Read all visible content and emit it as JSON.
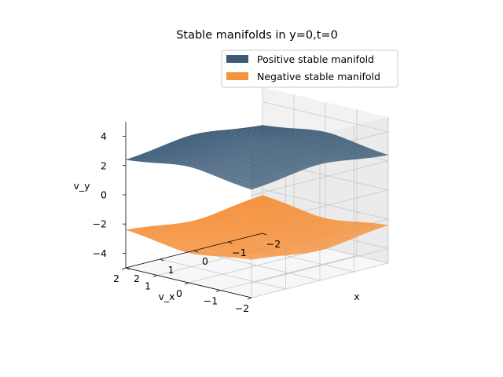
{
  "chart_data": {
    "type": "surface3d",
    "title": "Stable manifolds in y=0,t=0",
    "xlabel": "x",
    "ylabel": "v_x",
    "zlabel": "v_y",
    "x_ticks": [
      -2,
      -1,
      0,
      1,
      2
    ],
    "vx_ticks": [
      -2,
      -1,
      0,
      1,
      2
    ],
    "vy_ticks": [
      -4,
      -2,
      0,
      2,
      4
    ],
    "xlim": [
      -2,
      2
    ],
    "vxlim": [
      -2,
      2
    ],
    "zlim": [
      -5,
      5
    ],
    "grid": true,
    "legend_position": "upper right",
    "series": [
      {
        "name": "Positive stable manifold",
        "color": "#3b5b77",
        "surface": "v_y ≈ 2 + 0.75·(sech(x)+sech(v_x))",
        "z_range": [
          1.9,
          4.2
        ]
      },
      {
        "name": "Negative stable manifold",
        "color": "#f5923e",
        "surface": "v_y ≈ −(2 + 0.75·(sech(x)+sech(v_x)))",
        "z_range": [
          -4.2,
          -1.9
        ]
      }
    ]
  }
}
